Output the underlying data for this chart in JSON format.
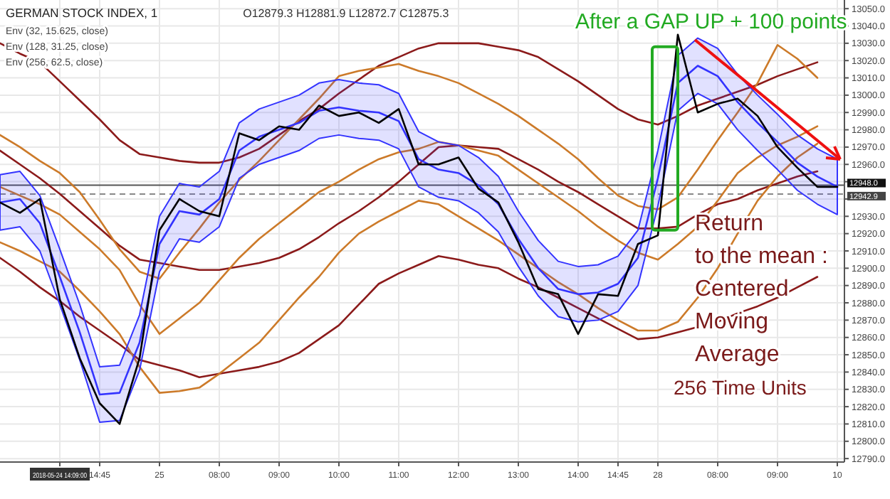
{
  "chart_data": {
    "type": "line",
    "title": "GERMAN STOCK INDEX, 1",
    "subtitle": "O12879.3  H12881.9  L12872.7  C12875.3",
    "categories": [
      null,
      null,
      null,
      "2018-05-24 14:09:00",
      null,
      "14:45",
      null,
      null,
      "25",
      null,
      null,
      "08:00",
      null,
      null,
      "09:00",
      null,
      null,
      "10:00",
      null,
      null,
      "11:00",
      null,
      null,
      "12:00",
      null,
      null,
      "13:00",
      null,
      null,
      "14:00",
      null,
      "14:45",
      null,
      "28",
      null,
      null,
      "08:00",
      null,
      null,
      "09:00",
      null,
      null,
      "10"
    ],
    "ylim": [
      12788,
      13055
    ],
    "yticks": [
      {
        "value": 12790,
        "label": "12790.0"
      },
      {
        "value": 12800,
        "label": "12800.0"
      },
      {
        "value": 12810,
        "label": "12810.0"
      },
      {
        "value": 12820,
        "label": "12820.0"
      },
      {
        "value": 12830,
        "label": "12830.0"
      },
      {
        "value": 12840,
        "label": "12840.0"
      },
      {
        "value": 12850,
        "label": "12850.0"
      },
      {
        "value": 12860,
        "label": "12860.0"
      },
      {
        "value": 12870,
        "label": "12870.0"
      },
      {
        "value": 12880,
        "label": "12880.0"
      },
      {
        "value": 12890,
        "label": "12890.0"
      },
      {
        "value": 12900,
        "label": "12900.0"
      },
      {
        "value": 12910,
        "label": "12910.0"
      },
      {
        "value": 12920,
        "label": "12920.0"
      },
      {
        "value": 12930,
        "label": "12930.0"
      },
      {
        "value": 12940,
        "label": null
      },
      {
        "value": 12950,
        "label": null
      },
      {
        "value": 12960,
        "label": "12960.0"
      },
      {
        "value": 12970,
        "label": "12970.0"
      },
      {
        "value": 12980,
        "label": "12980.0"
      },
      {
        "value": 12990,
        "label": "12990.0"
      },
      {
        "value": 13000,
        "label": "13000.0"
      },
      {
        "value": 13010,
        "label": "13010.0"
      },
      {
        "value": 13020,
        "label": "13020.0"
      },
      {
        "value": 13030,
        "label": "13030.0"
      },
      {
        "value": 13040,
        "label": "13040.0"
      },
      {
        "value": 13050,
        "label": "13050.0"
      }
    ],
    "grid": true,
    "marker": "none",
    "line_style": "solid",
    "series": [
      {
        "color": "#8b1a1a",
        "values": [
          13030,
          13024,
          13019,
          13008,
          12997,
          12986,
          12974,
          12966,
          12964,
          12962,
          12961,
          12961,
          12964,
          12969,
          12977,
          12985,
          12992,
          13001,
          13009,
          13017,
          13022,
          13027,
          13030,
          13030,
          13030,
          13028,
          13026,
          13022,
          13015,
          13008,
          13000,
          12992,
          12986,
          12983,
          12988,
          12994,
          12998,
          13002,
          13006,
          13011,
          13015,
          13019,
          null
        ]
      },
      {
        "color": "#8b1a1a",
        "values": [
          12968,
          12960,
          12952,
          12943,
          12933,
          12923,
          12913,
          12905,
          12903,
          12901,
          12899,
          12899,
          12901,
          12903,
          12906,
          12911,
          12918,
          12926,
          12933,
          12941,
          12950,
          12960,
          12970,
          12971,
          12970,
          12969,
          12963,
          12957,
          12950,
          12944,
          12937,
          12930,
          12923,
          12923,
          12924,
          12931,
          12937,
          12940,
          12945,
          12949,
          12953,
          12956,
          null
        ]
      },
      {
        "color": "#8b1a1a",
        "values": [
          12906,
          12898,
          12889,
          12881,
          12872,
          12864,
          12856,
          12847,
          12844,
          12841,
          12837,
          12839,
          12841,
          12843,
          12846,
          12851,
          12859,
          12867,
          12879,
          12891,
          12897,
          12902,
          12907,
          12905,
          12902,
          12900,
          12894,
          12889,
          12883,
          12877,
          12871,
          12865,
          12859,
          12860,
          12863,
          12866,
          12869,
          12874,
          12878,
          12883,
          12889,
          12895,
          null
        ]
      },
      {
        "color": "#cc7a29",
        "values": [
          12977,
          12970,
          12962,
          12955,
          12944,
          12928,
          12911,
          12898,
          12894,
          12909,
          12923,
          12938,
          12951,
          12962,
          12974,
          12986,
          12998,
          13011,
          13014,
          13016,
          13018,
          13014,
          13011,
          13007,
          13001,
          12995,
          12988,
          12980,
          12972,
          12963,
          12952,
          12942,
          12936,
          12934,
          12941,
          12957,
          12974,
          12990,
          13007,
          13029,
          13021,
          13010,
          null
        ]
      },
      {
        "color": "#cc7a29",
        "values": [
          12947,
          12942,
          12937,
          12931,
          12921,
          12911,
          12899,
          12879,
          12862,
          12871,
          12880,
          12893,
          12906,
          12917,
          12926,
          12935,
          12944,
          12950,
          12957,
          12963,
          12967,
          12969,
          12973,
          12971,
          12968,
          12965,
          12957,
          12949,
          12941,
          12933,
          12924,
          12916,
          12909,
          12905,
          12914,
          12924,
          12939,
          12955,
          12964,
          12971,
          12976,
          12982,
          null
        ]
      },
      {
        "color": "#cc7a29",
        "values": [
          12915,
          12910,
          12904,
          12898,
          12887,
          12875,
          12862,
          12843,
          12828,
          12829,
          12831,
          12839,
          12848,
          12857,
          12870,
          12883,
          12895,
          12909,
          12920,
          12927,
          12933,
          12939,
          12937,
          12930,
          12923,
          12916,
          12908,
          12900,
          12892,
          12885,
          12877,
          12870,
          12864,
          12864,
          12869,
          12883,
          12900,
          12920,
          12939,
          12953,
          12964,
          12972,
          null
        ]
      },
      {
        "color": "#3333ff",
        "values": [
          12938,
          12940,
          12926,
          12895,
          12863,
          12827,
          12828,
          12857,
          12914,
          12933,
          12931,
          12940,
          12968,
          12976,
          12980,
          12984,
          12991,
          12993,
          12991,
          12990,
          12985,
          12963,
          12957,
          12955,
          12948,
          12937,
          12917,
          12900,
          12888,
          12885,
          12886,
          12891,
          12906,
          12952,
          13007,
          13017,
          13011,
          12996,
          12984,
          12973,
          12961,
          12953,
          12947
        ],
        "lower": [
          12922,
          12924,
          12910,
          12879,
          12847,
          12811,
          12812,
          12841,
          12898,
          12917,
          12915,
          12924,
          12952,
          12960,
          12964,
          12968,
          12975,
          12977,
          12975,
          12974,
          12969,
          12947,
          12941,
          12939,
          12932,
          12921,
          12901,
          12884,
          12872,
          12869,
          12870,
          12875,
          12890,
          12936,
          12991,
          13001,
          12995,
          12980,
          12968,
          12957,
          12945,
          12937,
          12931
        ],
        "upper": [
          12954,
          12956,
          12942,
          12911,
          12879,
          12843,
          12844,
          12873,
          12930,
          12949,
          12947,
          12956,
          12984,
          12992,
          12996,
          13000,
          13007,
          13009,
          13007,
          13006,
          13001,
          12979,
          12973,
          12971,
          12964,
          12953,
          12933,
          12916,
          12904,
          12901,
          12902,
          12907,
          12922,
          12968,
          13023,
          13033,
          13027,
          13012,
          13000,
          12989,
          12977,
          12969,
          12963
        ]
      },
      {
        "color": "#000000",
        "values": [
          12938,
          12932,
          12940,
          12882,
          12848,
          12822,
          12810,
          12848,
          12922,
          12940,
          12933,
          12930,
          12978,
          12974,
          12982,
          12980,
          12994,
          12988,
          12990,
          12984,
          12992,
          12960,
          12960,
          12964,
          12946,
          12938,
          12915,
          12888,
          12885,
          12862,
          12885,
          12884,
          12914,
          12919,
          13035,
          12990,
          12995,
          12998,
          12988,
          12970,
          12958,
          12947,
          12947
        ]
      }
    ],
    "ref_lines": [
      {
        "axis": "y",
        "value": 12948,
        "label": "12948.0",
        "color": "#555555",
        "line_style": "solid"
      },
      {
        "axis": "y",
        "value": 12942.9,
        "label": "12942.9",
        "color": "#888888",
        "line_style": "dashed"
      }
    ],
    "annotations": [
      "Env (32, 15.625, close)",
      "Env (128, 31.25, close)",
      "Env (256, 62.5, close)",
      {
        "text": "After a GAP UP + 100 points",
        "x": "10",
        "y": 12963
      },
      "Return\nto the mean :\nCentered\nMoving\nAverage",
      "256 Time Units"
    ]
  }
}
